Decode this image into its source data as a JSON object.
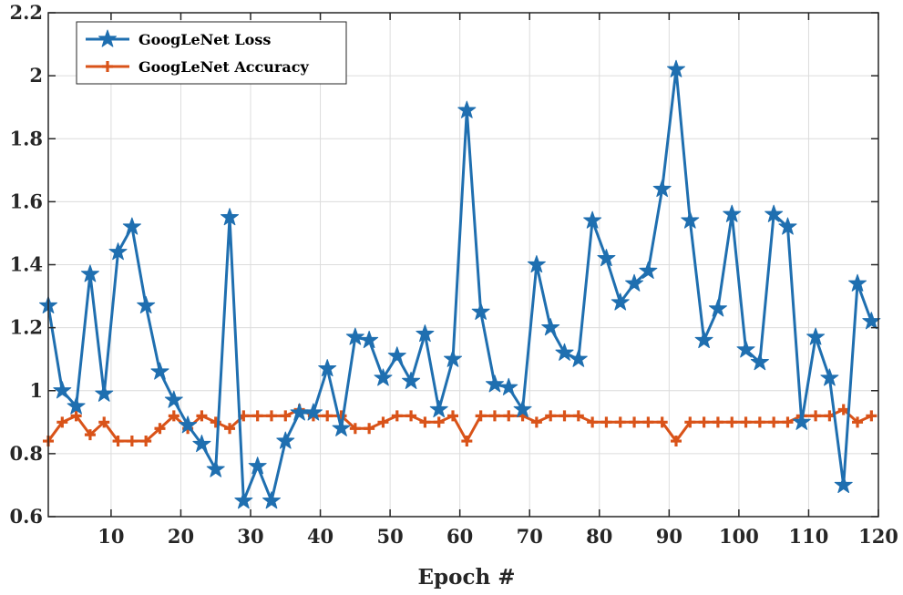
{
  "chart_data": {
    "type": "line",
    "title": "",
    "xlabel": "Epoch #",
    "ylabel": "",
    "xlim": [
      1,
      120
    ],
    "ylim": [
      0.6,
      2.2
    ],
    "xticks": [
      10,
      20,
      30,
      40,
      50,
      60,
      70,
      80,
      90,
      100,
      110,
      120
    ],
    "yticks": [
      0.6,
      0.8,
      1,
      1.2,
      1.4,
      1.6,
      1.8,
      2,
      2.2
    ],
    "xtick_labels": [
      "10",
      "20",
      "30",
      "40",
      "50",
      "60",
      "70",
      "80",
      "90",
      "100",
      "110",
      "120"
    ],
    "ytick_labels": [
      "0.6",
      "0.8",
      "1",
      "1.2",
      "1.4",
      "1.6",
      "1.8",
      "2",
      "2.2"
    ],
    "grid": true,
    "legend_position": "top-left",
    "series": [
      {
        "name": "GoogLeNet Loss",
        "color": "#1f6fb0",
        "marker": "star",
        "x": [
          1,
          3,
          5,
          7,
          9,
          11,
          13,
          15,
          17,
          19,
          21,
          23,
          25,
          27,
          29,
          31,
          33,
          35,
          37,
          39,
          41,
          43,
          45,
          47,
          49,
          51,
          53,
          55,
          57,
          59,
          61,
          63,
          65,
          67,
          69,
          71,
          73,
          75,
          77,
          79,
          81,
          83,
          85,
          87,
          89,
          91,
          93,
          95,
          97,
          99,
          101,
          103,
          105,
          107,
          109,
          111,
          113,
          115,
          117,
          119
        ],
        "y": [
          1.27,
          1.0,
          0.95,
          1.37,
          0.99,
          1.44,
          1.52,
          1.27,
          1.06,
          0.97,
          0.89,
          0.83,
          0.75,
          1.55,
          0.65,
          0.76,
          0.65,
          0.84,
          0.93,
          0.93,
          1.07,
          0.88,
          1.17,
          1.16,
          1.04,
          1.11,
          1.03,
          1.18,
          0.94,
          1.1,
          1.89,
          1.25,
          1.02,
          1.01,
          0.94,
          1.4,
          1.2,
          1.12,
          1.1,
          1.54,
          1.42,
          1.28,
          1.34,
          1.38,
          1.64,
          2.02,
          1.54,
          1.16,
          1.26,
          1.56,
          1.13,
          1.09,
          1.56,
          1.52,
          0.9,
          1.17,
          1.04,
          0.7,
          1.34,
          1.22
        ]
      },
      {
        "name": "GoogLeNet Accuracy",
        "color": "#d95319",
        "marker": "plus",
        "x": [
          1,
          3,
          5,
          7,
          9,
          11,
          13,
          15,
          17,
          19,
          21,
          23,
          25,
          27,
          29,
          31,
          33,
          35,
          37,
          39,
          41,
          43,
          45,
          47,
          49,
          51,
          53,
          55,
          57,
          59,
          61,
          63,
          65,
          67,
          69,
          71,
          73,
          75,
          77,
          79,
          81,
          83,
          85,
          87,
          89,
          91,
          93,
          95,
          97,
          99,
          101,
          103,
          105,
          107,
          109,
          111,
          113,
          115,
          117,
          119
        ],
        "y": [
          0.84,
          0.9,
          0.92,
          0.86,
          0.9,
          0.84,
          0.84,
          0.84,
          0.88,
          0.92,
          0.88,
          0.92,
          0.9,
          0.88,
          0.92,
          0.92,
          0.92,
          0.92,
          0.94,
          0.92,
          0.92,
          0.92,
          0.88,
          0.88,
          0.9,
          0.92,
          0.92,
          0.9,
          0.9,
          0.92,
          0.84,
          0.92,
          0.92,
          0.92,
          0.92,
          0.9,
          0.92,
          0.92,
          0.92,
          0.9,
          0.9,
          0.9,
          0.9,
          0.9,
          0.9,
          0.84,
          0.9,
          0.9,
          0.9,
          0.9,
          0.9,
          0.9,
          0.9,
          0.9,
          0.92,
          0.92,
          0.92,
          0.94,
          0.9,
          0.92
        ]
      }
    ]
  }
}
